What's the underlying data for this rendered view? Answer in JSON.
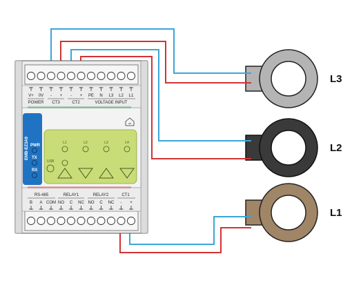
{
  "device": {
    "model_label": "EMB-EZ3A9",
    "indicators": [
      "PWR",
      "TX",
      "RX"
    ],
    "panel_labels": [
      "L1",
      "L2",
      "L3",
      "L4"
    ],
    "usb_label": "USB",
    "top_groups": {
      "power": "POWER",
      "ct3": "CT3",
      "ct2": "CT2",
      "voltage_input": "VOLTAGE INPUT"
    },
    "top_terminals": [
      "V+",
      "0V",
      "-",
      "+",
      "-",
      "+",
      "PE",
      "N",
      "L3",
      "L2",
      "L1"
    ],
    "bottom_groups": {
      "rs485": "RS-485",
      "relay1": "RELAY1",
      "relay2": "RELAY2",
      "ct1": "CT1"
    },
    "bottom_terminals": [
      "B",
      "A",
      "COM",
      "NO",
      "C",
      "NC",
      "NO",
      "C",
      "NC",
      "-",
      "+"
    ]
  },
  "sensors": [
    {
      "label": "L3",
      "color": "#b4b4b4"
    },
    {
      "label": "L2",
      "color": "#3a3a3a"
    },
    {
      "label": "L1",
      "color": "#a08566"
    }
  ],
  "colors": {
    "wire_blue": "#3aa6d8",
    "wire_red": "#d23232",
    "device_body": "#ececec",
    "accent_blue": "#1f73c2",
    "panel_green": "#c8dc78"
  }
}
